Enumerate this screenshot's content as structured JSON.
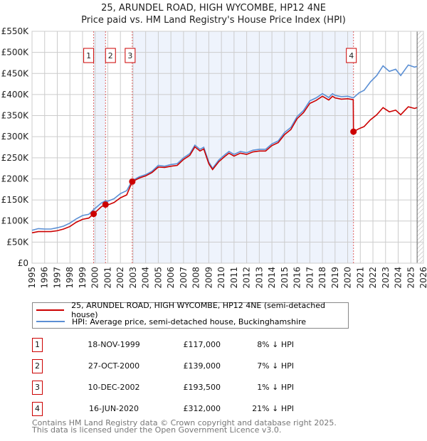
{
  "title": "25, ARUNDEL ROAD, HIGH WYCOMBE, HP12 4NE",
  "subtitle": "Price paid vs. HM Land Registry's House Price Index (HPI)",
  "colors": {
    "price": "#cc0000",
    "hpi": "#5b8fd4",
    "band": "#eef3fc"
  },
  "chart_data": {
    "type": "line",
    "title": "25, ARUNDEL ROAD, HIGH WYCOMBE, HP12 4NE",
    "xlim": [
      1995,
      2026
    ],
    "ylim": [
      0,
      550000
    ],
    "x_ticks": [
      "1995",
      "1996",
      "1997",
      "1998",
      "1999",
      "2000",
      "2001",
      "2002",
      "2003",
      "2004",
      "2005",
      "2006",
      "2007",
      "2008",
      "2009",
      "2010",
      "2011",
      "2012",
      "2013",
      "2014",
      "2015",
      "2016",
      "2017",
      "2018",
      "2019",
      "2020",
      "2021",
      "2022",
      "2023",
      "2024",
      "2025",
      "2026"
    ],
    "y_ticks": [
      {
        "v": 0,
        "l": "£0"
      },
      {
        "v": 50000,
        "l": "£50K"
      },
      {
        "v": 100000,
        "l": "£100K"
      },
      {
        "v": 150000,
        "l": "£150K"
      },
      {
        "v": 200000,
        "l": "£200K"
      },
      {
        "v": 250000,
        "l": "£250K"
      },
      {
        "v": 300000,
        "l": "£300K"
      },
      {
        "v": 350000,
        "l": "£350K"
      },
      {
        "v": 400000,
        "l": "£400K"
      },
      {
        "v": 450000,
        "l": "£450K"
      },
      {
        "v": 500000,
        "l": "£500K"
      },
      {
        "v": 550000,
        "l": "£550K"
      }
    ],
    "grid": true,
    "series": [
      {
        "name": "25, ARUNDEL ROAD, HIGH WYCOMBE, HP12 4NE (semi-detached house)",
        "color": "#cc0000",
        "points": [
          [
            1995,
            72
          ],
          [
            1995.5,
            75
          ],
          [
            1996,
            75
          ],
          [
            1996.5,
            75
          ],
          [
            1997,
            77
          ],
          [
            1997.5,
            81
          ],
          [
            1998,
            87
          ],
          [
            1998.5,
            97
          ],
          [
            1999,
            104
          ],
          [
            1999.5,
            107
          ],
          [
            1999.88,
            117
          ],
          [
            2000.5,
            134
          ],
          [
            2000.82,
            139
          ],
          [
            2001,
            138
          ],
          [
            2001.5,
            144
          ],
          [
            2002,
            155
          ],
          [
            2002.5,
            162
          ],
          [
            2002.94,
            193.5
          ],
          [
            2003.5,
            202
          ],
          [
            2004,
            207
          ],
          [
            2004.5,
            215
          ],
          [
            2005,
            228
          ],
          [
            2005.5,
            227
          ],
          [
            2006,
            230
          ],
          [
            2006.5,
            232
          ],
          [
            2007,
            246
          ],
          [
            2007.5,
            256
          ],
          [
            2007.9,
            276
          ],
          [
            2008.3,
            266
          ],
          [
            2008.6,
            271
          ],
          [
            2009,
            236
          ],
          [
            2009.3,
            222
          ],
          [
            2009.8,
            241
          ],
          [
            2010.3,
            254
          ],
          [
            2010.6,
            261
          ],
          [
            2011,
            254
          ],
          [
            2011.5,
            261
          ],
          [
            2012,
            258
          ],
          [
            2012.5,
            264
          ],
          [
            2013,
            266
          ],
          [
            2013.5,
            266
          ],
          [
            2014,
            279
          ],
          [
            2014.5,
            286
          ],
          [
            2015,
            305
          ],
          [
            2015.5,
            317
          ],
          [
            2016,
            343
          ],
          [
            2016.5,
            357
          ],
          [
            2017,
            379
          ],
          [
            2017.5,
            386
          ],
          [
            2018,
            396
          ],
          [
            2018.5,
            387
          ],
          [
            2018.8,
            396
          ],
          [
            2019,
            392
          ],
          [
            2019.5,
            389
          ],
          [
            2020,
            390
          ],
          [
            2020.44,
            388
          ],
          [
            2020.46,
            312
          ],
          [
            2020.9,
            319
          ],
          [
            2021.3,
            324
          ],
          [
            2021.8,
            340
          ],
          [
            2022.3,
            352
          ],
          [
            2022.8,
            369
          ],
          [
            2023.3,
            359
          ],
          [
            2023.8,
            363
          ],
          [
            2024.2,
            352
          ],
          [
            2024.8,
            371
          ],
          [
            2025.3,
            367
          ],
          [
            2025.5,
            369
          ]
        ]
      },
      {
        "name": "HPI: Average price, semi-detached house, Buckinghamshire",
        "color": "#5b8fd4",
        "points": [
          [
            1995,
            78
          ],
          [
            1995.5,
            82
          ],
          [
            1996,
            81
          ],
          [
            1996.5,
            81
          ],
          [
            1997,
            84
          ],
          [
            1997.5,
            88
          ],
          [
            1998,
            95
          ],
          [
            1998.5,
            105
          ],
          [
            1999,
            113
          ],
          [
            1999.5,
            116
          ],
          [
            1999.88,
            127
          ],
          [
            2000.5,
            143
          ],
          [
            2000.82,
            148
          ],
          [
            2001,
            147
          ],
          [
            2001.5,
            153
          ],
          [
            2002,
            165
          ],
          [
            2002.5,
            172
          ],
          [
            2002.94,
            196
          ],
          [
            2003.5,
            205
          ],
          [
            2004,
            210
          ],
          [
            2004.5,
            218
          ],
          [
            2005,
            232
          ],
          [
            2005.5,
            230
          ],
          [
            2006,
            234
          ],
          [
            2006.5,
            236
          ],
          [
            2007,
            250
          ],
          [
            2007.5,
            260
          ],
          [
            2007.9,
            280
          ],
          [
            2008.3,
            270
          ],
          [
            2008.6,
            275
          ],
          [
            2009,
            240
          ],
          [
            2009.3,
            225
          ],
          [
            2009.8,
            245
          ],
          [
            2010.3,
            258
          ],
          [
            2010.6,
            265
          ],
          [
            2011,
            258
          ],
          [
            2011.5,
            265
          ],
          [
            2012,
            262
          ],
          [
            2012.5,
            268
          ],
          [
            2013,
            270
          ],
          [
            2013.5,
            270
          ],
          [
            2014,
            283
          ],
          [
            2014.5,
            290
          ],
          [
            2015,
            310
          ],
          [
            2015.5,
            322
          ],
          [
            2016,
            348
          ],
          [
            2016.5,
            362
          ],
          [
            2017,
            385
          ],
          [
            2017.5,
            392
          ],
          [
            2018,
            402
          ],
          [
            2018.5,
            393
          ],
          [
            2018.8,
            402
          ],
          [
            2019,
            398
          ],
          [
            2019.5,
            395
          ],
          [
            2020,
            396
          ],
          [
            2020.45,
            392
          ],
          [
            2020.9,
            404
          ],
          [
            2021.3,
            410
          ],
          [
            2021.8,
            430
          ],
          [
            2022.3,
            445
          ],
          [
            2022.8,
            468
          ],
          [
            2023.3,
            455
          ],
          [
            2023.8,
            460
          ],
          [
            2024.2,
            445
          ],
          [
            2024.8,
            470
          ],
          [
            2025.3,
            465
          ],
          [
            2025.5,
            467
          ]
        ]
      }
    ],
    "units_note": "values in £K",
    "sales": [
      {
        "n": "1",
        "x": 1999.88,
        "price": 117,
        "date": "18-NOV-1999",
        "price_label": "£117,000",
        "hpi": "8% ↓ HPI"
      },
      {
        "n": "2",
        "x": 2000.82,
        "price": 139,
        "date": "27-OCT-2000",
        "price_label": "£139,000",
        "hpi": "7% ↓ HPI"
      },
      {
        "n": "3",
        "x": 2002.94,
        "price": 193.5,
        "date": "10-DEC-2002",
        "price_label": "£193,500",
        "hpi": "1% ↓ HPI"
      },
      {
        "n": "4",
        "x": 2020.46,
        "price": 312,
        "date": "16-JUN-2020",
        "price_label": "£312,000",
        "hpi": "21% ↓ HPI"
      }
    ],
    "forecast_from": 2025.5,
    "legend": "below"
  },
  "legend": {
    "price": "25, ARUNDEL ROAD, HIGH WYCOMBE, HP12 4NE (semi-detached house)",
    "hpi": "HPI: Average price, semi-detached house, Buckinghamshire"
  },
  "footer": {
    "line1": "Contains HM Land Registry data © Crown copyright and database right 2025.",
    "line2": "This data is licensed under the Open Government Licence v3.0."
  }
}
